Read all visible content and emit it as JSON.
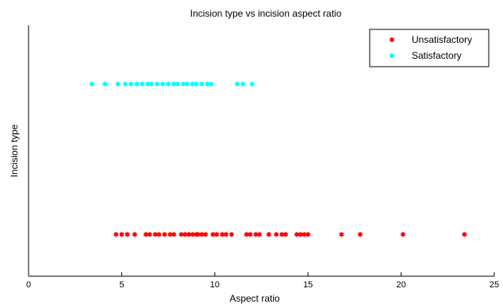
{
  "chart_data": {
    "type": "scatter",
    "title": "Incision type vs incision aspect ratio",
    "xlabel": "Aspect ratio",
    "ylabel": "Incision type",
    "xlim": [
      0,
      25
    ],
    "ylim": [
      0.5,
      3.5
    ],
    "xticks": [
      "0",
      "5",
      "10",
      "15",
      "20",
      "25"
    ],
    "grid": false,
    "legend_position": "top-right",
    "series": [
      {
        "name": "Unsatisfactory",
        "color": "#ff0000",
        "y": 1,
        "x": [
          4.7,
          5.0,
          5.3,
          5.7,
          6.3,
          6.5,
          6.8,
          7.0,
          7.3,
          7.6,
          7.8,
          8.2,
          8.4,
          8.6,
          8.8,
          9.0,
          9.1,
          9.3,
          9.5,
          9.9,
          10.1,
          10.4,
          10.6,
          10.9,
          11.7,
          11.9,
          12.2,
          12.4,
          12.9,
          13.3,
          13.6,
          13.8,
          14.4,
          14.6,
          14.8,
          15.0,
          16.8,
          17.8,
          20.1,
          23.4
        ]
      },
      {
        "name": "Satisfactory",
        "color": "#00ffff",
        "y": 2.8,
        "x": [
          3.4,
          4.1,
          4.8,
          5.2,
          5.5,
          5.8,
          6.1,
          6.4,
          6.6,
          6.9,
          7.2,
          7.5,
          7.8,
          8.0,
          8.3,
          8.5,
          8.8,
          9.0,
          9.3,
          9.6,
          9.8,
          11.2,
          11.5,
          12.0
        ]
      }
    ]
  }
}
